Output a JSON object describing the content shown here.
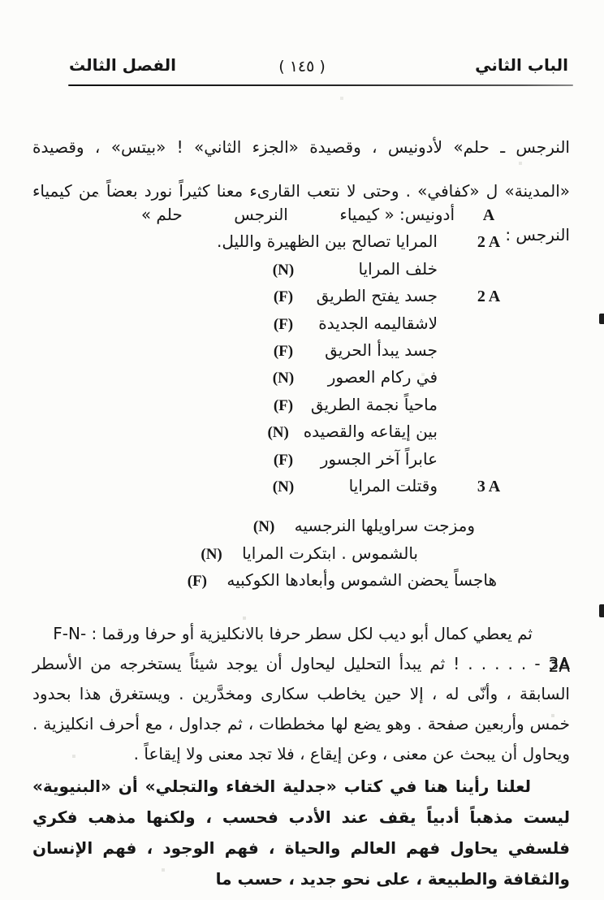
{
  "header": {
    "chapter_right": "الباب الثاني",
    "page_number": "( ١٤٥ )",
    "chapter_left": "الفصل الثالث"
  },
  "paragraphs": {
    "p1": "النرجس ـ حلم» لأدونيس ، وقصيدة «الجزء الثاني» ! «بيتس» ، وقصيدة «المدينة» ل «كفافي» . وحتى لا نتعب القارىء معنا كثيراً نورد بعضاً من كيمياء النرجس :",
    "p2": "ثم يعطي كمال أبو ديب لكل سطر حرفا بالانكليزية أو حرفا ورقما : F-N-2A",
    "p3": "3A - . . . . . ! ثم يبدأ التحليل ليحاول أن يوجد شيئاً يستخرجه من الأسطر السابقة ، وأنّى له ، إلا حين يخاطب سكارى ومخدَّرين . ويستغرق هذا بحدود خمس وأربعين صفحة . وهو يضع لها مخططات ، ثم جداول ، مع أحرف انكليزية . ويحاول أن يبحث عن معنى ، وعن إيقاع ، فلا تجد معنى ولا إيقاعاً .",
    "p4": "لعلنا رأينا هنا في كتاب «جدلية الخفاء والتجلي» أن «البنيوية» ليست مذهباً أدبياً يقف عند الأدب فحسب ، ولكنها مذهب فكري فلسفي يحاول فهم العالم والحياة ، فهم الوجود ، فهم الإنسان والثقافة والطبيعة ، على نحو جديد ، حسب ما"
  },
  "verses": {
    "rows": [
      {
        "label": "A",
        "text": "أدونيس: « كيمياء          النرجس          حلم »",
        "marker": ""
      },
      {
        "label": "2 A",
        "text": "المرايا تصالح بين الظهيرة والليل.",
        "marker": ""
      },
      {
        "label": "",
        "text": "خلف المرايا",
        "marker": "(N)"
      },
      {
        "label": "2 A",
        "text": "جسد يفتح الطريق",
        "marker": "(F)"
      },
      {
        "label": "",
        "text": "لاشقاليمه الجديدة",
        "marker": "(F)"
      },
      {
        "label": "",
        "text": "جسد يبدأ الحريق",
        "marker": "(F)"
      },
      {
        "label": "",
        "text": "في ركام العصور",
        "marker": "(N)"
      },
      {
        "label": "",
        "text": "ماحياً نجمة الطريق",
        "marker": "(F)"
      },
      {
        "label": "",
        "text": "بين إيقاعه والقصيده",
        "marker": "(N)"
      },
      {
        "label": "",
        "text": "عابراً آخر الجسور",
        "marker": "(F)"
      },
      {
        "label": "3 A",
        "text": "وقتلت المرايا",
        "marker": "(N)"
      },
      {
        "label": "",
        "text": "ومزجت سراويلها النرجسيه",
        "marker": "(N)"
      },
      {
        "label": "",
        "text": "بالشموس . ابتكرت المرايا",
        "marker": "(N)"
      },
      {
        "label": "",
        "text": "هاجساً يحضن الشموس وأبعادها الكوكبيه",
        "marker": "(F)"
      }
    ]
  }
}
